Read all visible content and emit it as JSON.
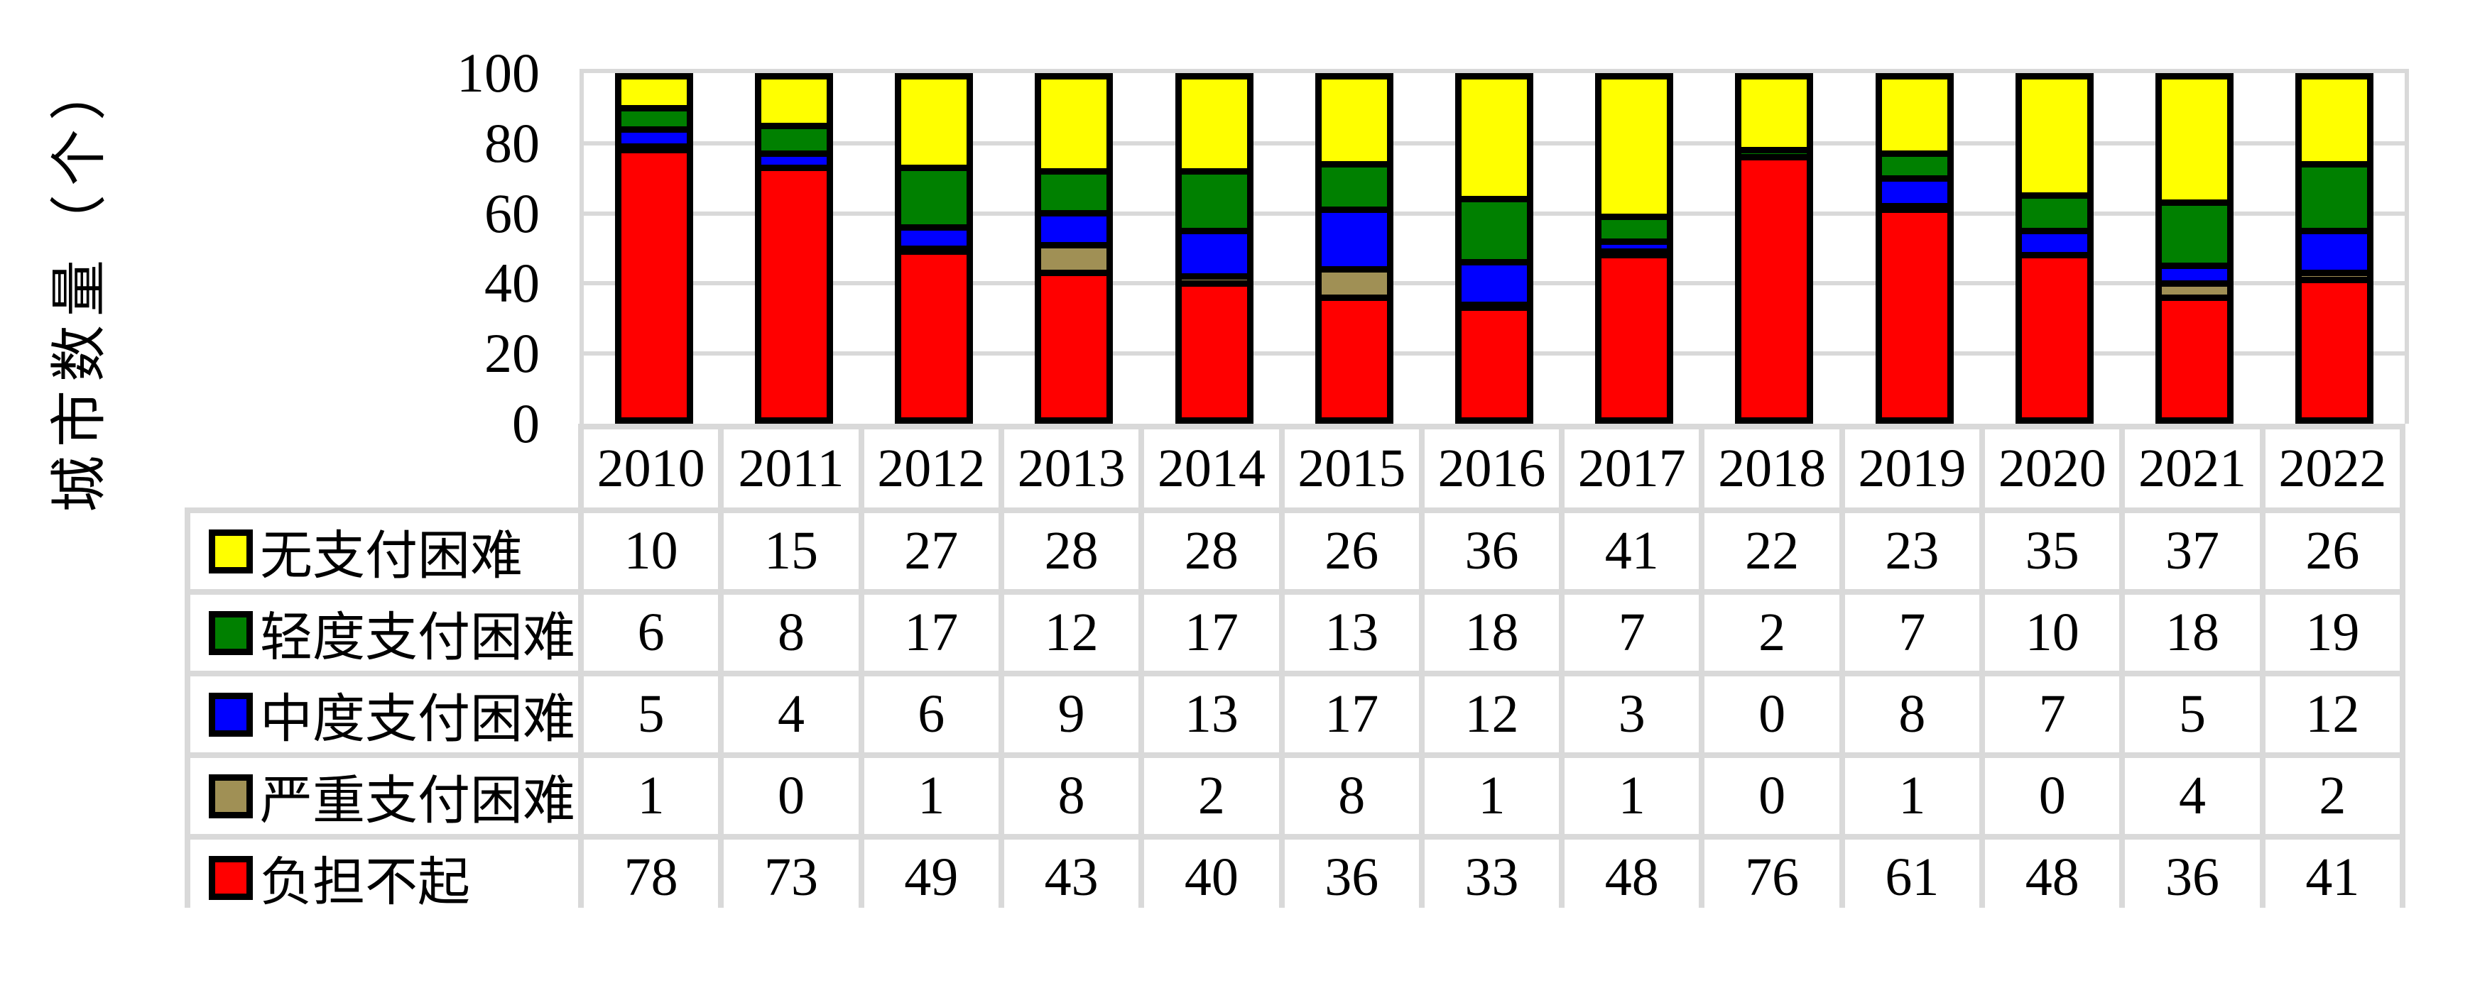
{
  "chart_data": {
    "type": "bar",
    "stacked": true,
    "title": "",
    "xlabel": "",
    "ylabel": "城市数量（个）",
    "ylim": [
      0,
      100
    ],
    "yticks": [
      0,
      20,
      40,
      60,
      80,
      100
    ],
    "grid": "horizontal gridlines every 20 units",
    "legend_position": "left column of data table below chart",
    "categories": [
      "2010",
      "2011",
      "2012",
      "2013",
      "2014",
      "2015",
      "2016",
      "2017",
      "2018",
      "2019",
      "2020",
      "2021",
      "2022"
    ],
    "series": [
      {
        "name": "无支付困难",
        "color": "#FFFF00",
        "values": [
          10,
          15,
          27,
          28,
          28,
          26,
          36,
          41,
          22,
          23,
          35,
          37,
          26
        ]
      },
      {
        "name": "轻度支付困难",
        "color": "#008000",
        "values": [
          6,
          8,
          17,
          12,
          17,
          13,
          18,
          7,
          2,
          7,
          10,
          18,
          19
        ]
      },
      {
        "name": "中度支付困难",
        "color": "#0000FF",
        "values": [
          5,
          4,
          6,
          9,
          13,
          17,
          12,
          3,
          0,
          8,
          7,
          5,
          12
        ]
      },
      {
        "name": "严重支付困难",
        "color": "#A09055",
        "values": [
          1,
          0,
          1,
          8,
          2,
          8,
          1,
          1,
          0,
          1,
          0,
          4,
          2
        ]
      },
      {
        "name": "负担不起",
        "color": "#FF0000",
        "values": [
          78,
          73,
          49,
          43,
          40,
          36,
          33,
          48,
          76,
          61,
          48,
          36,
          41
        ]
      }
    ],
    "stack_order_bottom_to_top": [
      "负担不起",
      "严重支付困难",
      "中度支付困难",
      "轻度支付困难",
      "无支付困难"
    ]
  },
  "style_colors": {
    "gridline": "#D9D9D9",
    "table_border": "#D9D9D9",
    "bar_border": "#000000",
    "background": "#FFFFFF",
    "text": "#000000"
  }
}
